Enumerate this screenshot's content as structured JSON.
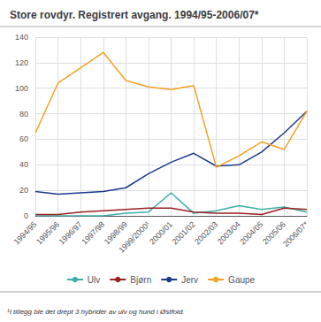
{
  "chart_data": {
    "type": "line",
    "title": "Store rovdyr. Registrert avgang. 1994/95-2006/07*",
    "categories": [
      "1994/95",
      "1995/96",
      "1996/97",
      "1997/98",
      "1998/99",
      "1999/2000¹",
      "2000/01",
      "2001/02",
      "2002/03",
      "2003/04",
      "2004/05",
      "2005/06",
      "2006/07*"
    ],
    "series": [
      {
        "name": "Ulv",
        "color": "#3aafa9",
        "values": [
          0,
          0,
          0,
          0,
          2,
          3,
          18,
          2,
          4,
          8,
          5,
          7,
          3
        ]
      },
      {
        "name": "Bjørn",
        "color": "#9b2020",
        "values": [
          1,
          1,
          3,
          4,
          5,
          6,
          6,
          3,
          2,
          2,
          1,
          6,
          5
        ]
      },
      {
        "name": "Jerv",
        "color": "#1a3a8a",
        "values": [
          19,
          17,
          18,
          19,
          22,
          33,
          42,
          49,
          39,
          40,
          50,
          65,
          82
        ]
      },
      {
        "name": "Gaupe",
        "color": "#f5a020",
        "values": [
          65,
          104,
          116,
          128,
          106,
          101,
          99,
          102,
          38,
          47,
          58,
          52,
          82
        ]
      }
    ],
    "ylim": [
      0,
      140
    ],
    "yticks": [
      0,
      20,
      40,
      60,
      80,
      100,
      120,
      140
    ],
    "grid": true,
    "legend": "bottom",
    "annotations": [
      "¹I tillegg ble det drept 3 hybrider av ulv og hund i Østfold."
    ]
  }
}
